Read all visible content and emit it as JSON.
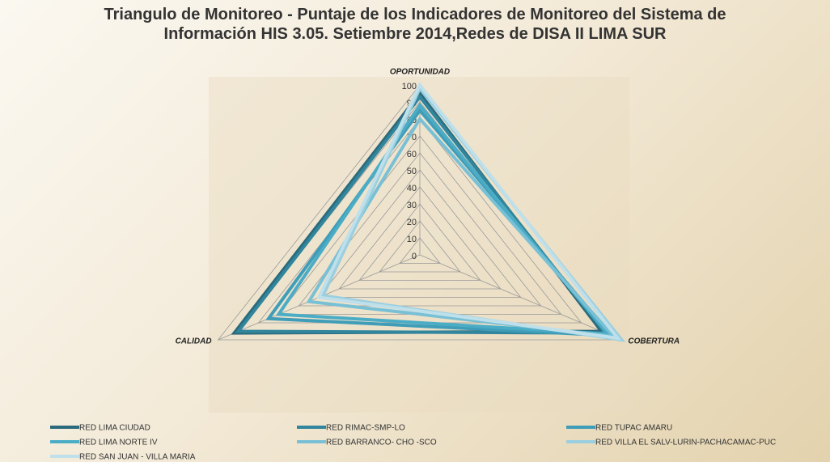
{
  "chart_data": {
    "type": "radar",
    "title": "Triangulo de Monitoreo - Puntaje de los Indicadores de Monitoreo del Sistema de Información HIS 3.05. Setiembre 2014,Redes de DISA II LIMA SUR",
    "categories": [
      "OPORTUNIDAD",
      "COBERTURA",
      "CALIDAD"
    ],
    "ylim": [
      0,
      100
    ],
    "yticks": [
      0,
      10,
      20,
      30,
      40,
      50,
      60,
      70,
      80,
      90,
      100
    ],
    "grid": true,
    "legend": "bottom",
    "series": [
      {
        "name": "RED LIMA CIUDAD",
        "color": "#2b6a7c",
        "values": [
          95,
          90,
          92
        ]
      },
      {
        "name": "RED RIMAC-SMP-LO",
        "color": "#31859c",
        "values": [
          93,
          92,
          90
        ]
      },
      {
        "name": "RED TUPAC AMARU",
        "color": "#3f9db8",
        "values": [
          85,
          95,
          75
        ]
      },
      {
        "name": "RED LIMA NORTE IV",
        "color": "#4bacc6",
        "values": [
          88,
          93,
          70
        ]
      },
      {
        "name": "RED BARRANCO- CHO -SCO",
        "color": "#78c0d5",
        "values": [
          80,
          96,
          55
        ]
      },
      {
        "name": "RED VILLA EL SALV-LURIN-PACHACAMAC-PUC",
        "color": "#9bcfe0",
        "values": [
          98,
          100,
          48
        ]
      },
      {
        "name": "RED SAN JUAN - VILLA MARIA",
        "color": "#bfe0ea",
        "values": [
          100,
          98,
          50
        ]
      }
    ]
  }
}
